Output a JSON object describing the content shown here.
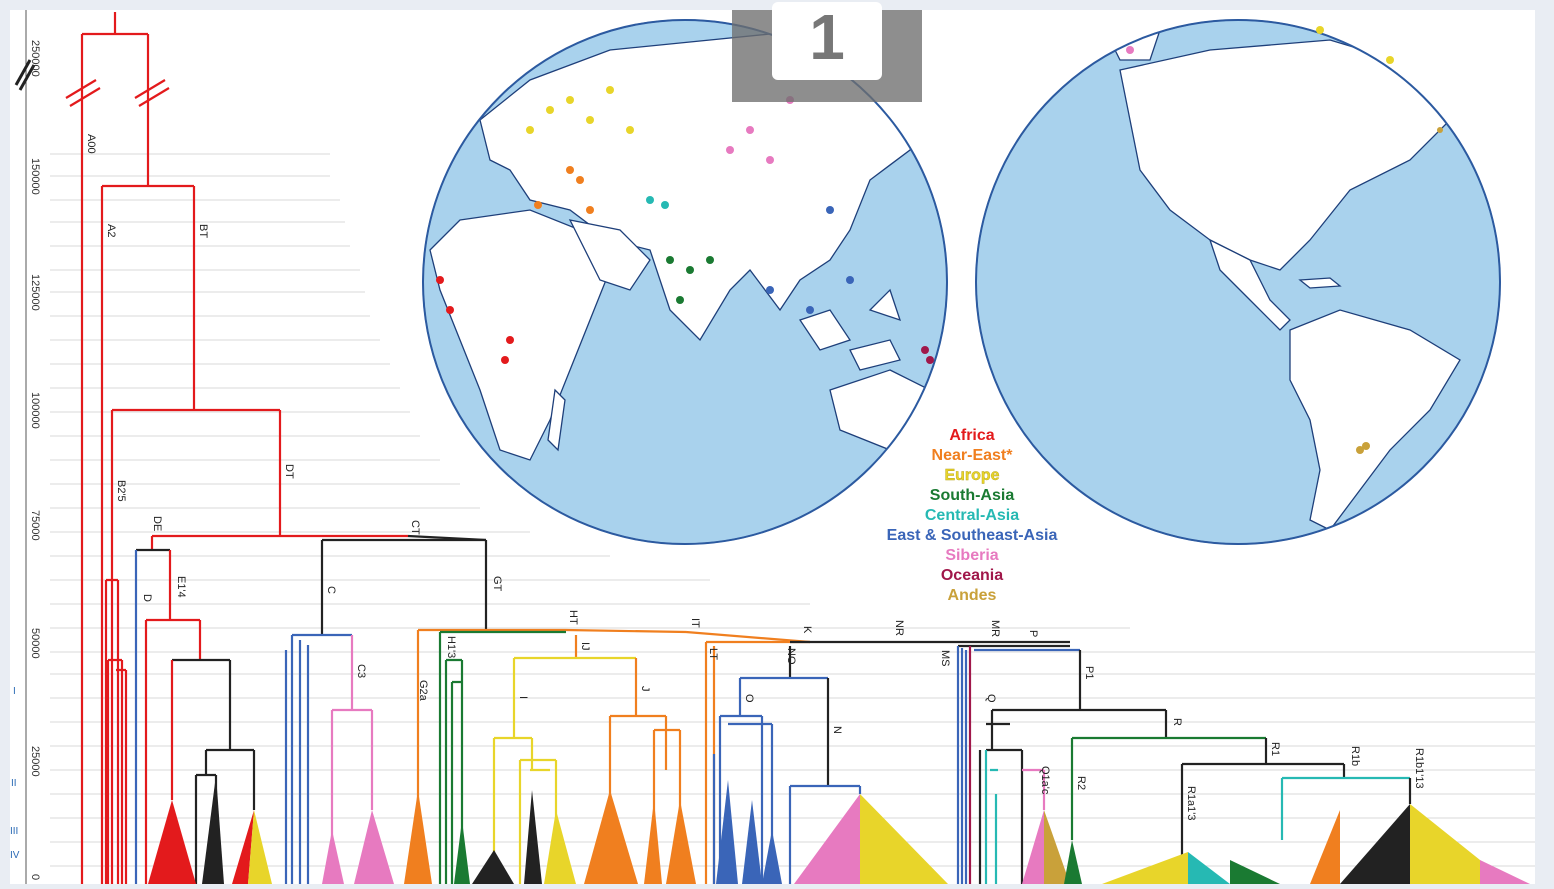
{
  "badge": {
    "number": "1"
  },
  "axis": {
    "ticks": [
      "250000",
      "150000",
      "125000",
      "100000",
      "75000",
      "50000",
      "25000",
      "0"
    ],
    "eras": [
      "I",
      "II",
      "III",
      "IV"
    ]
  },
  "clades": [
    "A00",
    "A2",
    "BT",
    "B2'5",
    "DT",
    "DE",
    "D",
    "E1'4",
    "CT",
    "C",
    "C3",
    "GT",
    "G2a",
    "H1'3",
    "HT",
    "IJ",
    "I",
    "J",
    "IT",
    "LT",
    "K",
    "NO",
    "O",
    "N",
    "NR",
    "MS",
    "MR",
    "P",
    "P1",
    "Q",
    "Q1a'c",
    "R",
    "R2",
    "R1",
    "R1b",
    "R1b1'13",
    "R1a1'3"
  ],
  "legend": [
    {
      "label": "Africa",
      "color": "#e31a1c"
    },
    {
      "label": "Near-East*",
      "color": "#f07f1f"
    },
    {
      "label": "Europe",
      "color": "#e8d52a"
    },
    {
      "label": "South-Asia",
      "color": "#1a7a32"
    },
    {
      "label": "Central-Asia",
      "color": "#26b9b3"
    },
    {
      "label": "East & Southeast-Asia",
      "color": "#3a65b8"
    },
    {
      "label": "Siberia",
      "color": "#e77ac0"
    },
    {
      "label": "Oceania",
      "color": "#a0174a"
    },
    {
      "label": "Andes",
      "color": "#c9a13a"
    }
  ],
  "maps": {
    "ocean_color": "#a9d2ed",
    "land_color": "#ffffff",
    "left_globe": "eastern-hemisphere-globe",
    "right_globe": "western-hemisphere-globe"
  }
}
